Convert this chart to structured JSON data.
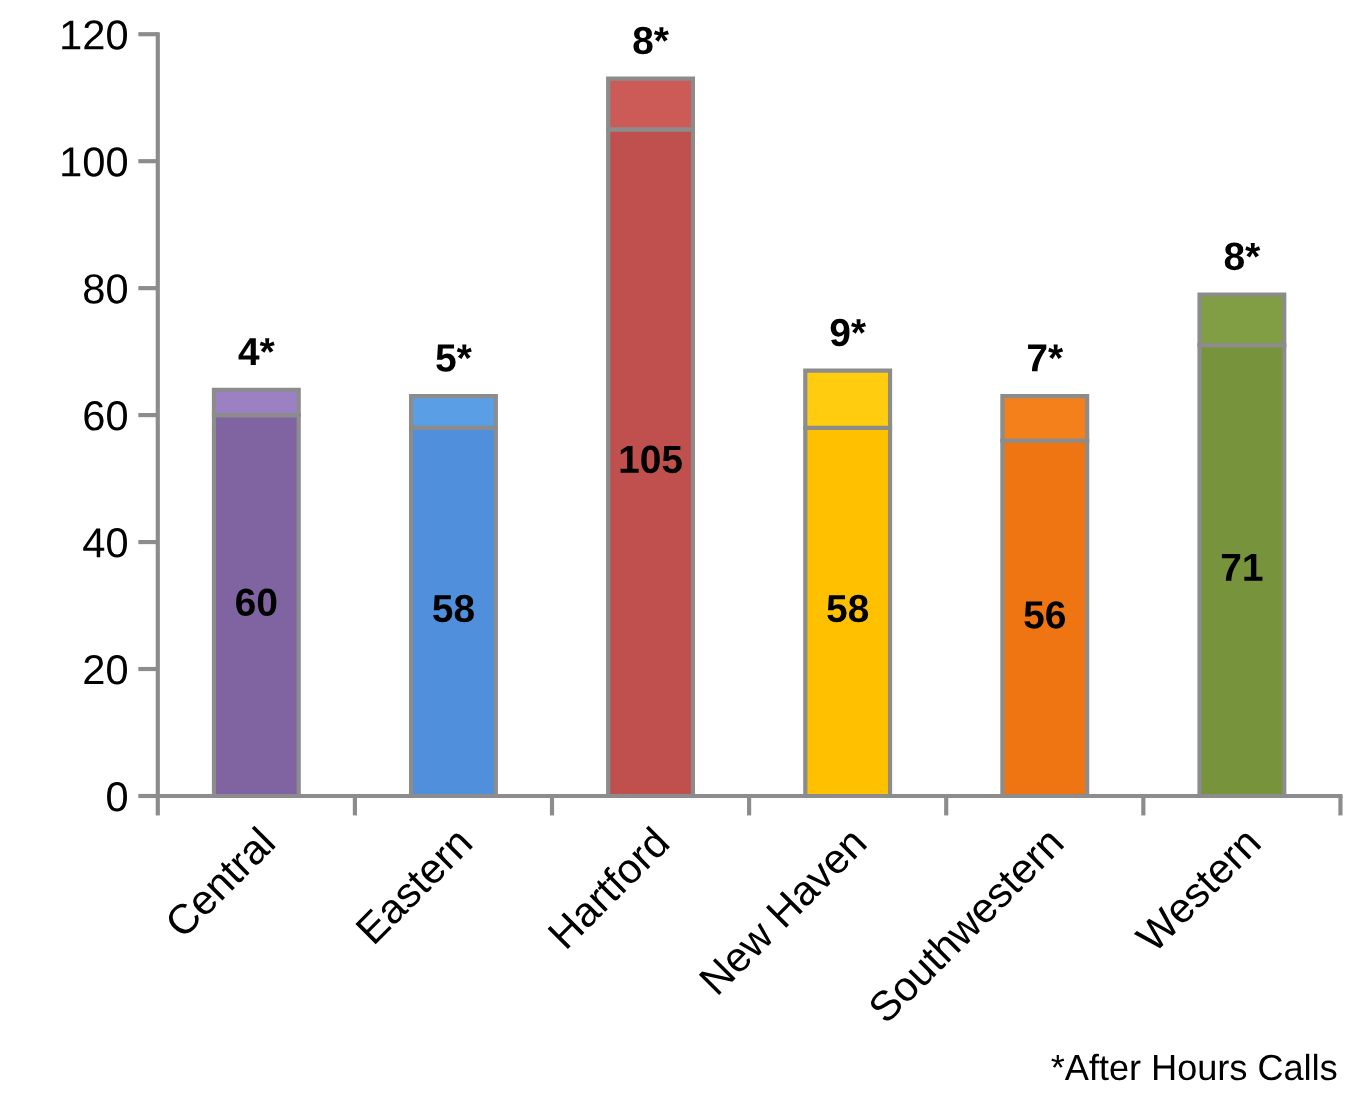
{
  "chart_data": {
    "type": "bar",
    "stacked": true,
    "categories": [
      "Central",
      "Eastern",
      "Hartford",
      "New Haven",
      "Southwestern",
      "Western"
    ],
    "series": [
      {
        "values": [
          60,
          58,
          105,
          58,
          56,
          71
        ],
        "colors": [
          "#8064a2",
          "#4f8fdc",
          "#c0504d",
          "#ffc000",
          "#ef7412",
          "#77933c"
        ],
        "value_labels": [
          "60",
          "58",
          "105",
          "58",
          "56",
          "71"
        ]
      },
      {
        "values": [
          4,
          5,
          8,
          9,
          7,
          8
        ],
        "colors": [
          "#9c80c4",
          "#5a9ee6",
          "#cc5a57",
          "#ffcc10",
          "#f4801c",
          "#819e44"
        ],
        "value_labels": [
          "4*",
          "5*",
          "8*",
          "9*",
          "7*",
          "8*"
        ]
      }
    ],
    "ylim": [
      0,
      120
    ],
    "yticks": [
      0,
      20,
      40,
      60,
      80,
      100,
      120
    ],
    "grid": false,
    "annotations": [
      "*After Hours Calls"
    ]
  }
}
